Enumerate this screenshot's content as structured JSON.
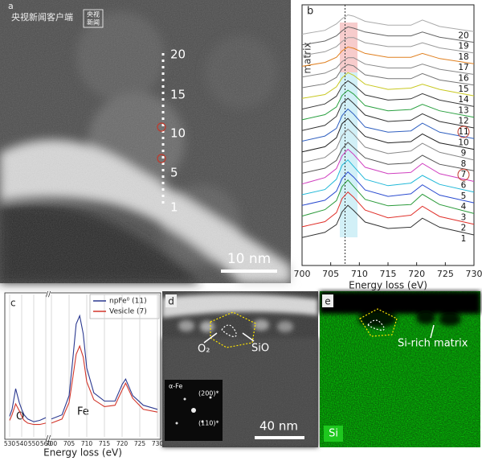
{
  "images": {
    "a": {
      "label": "a",
      "watermark": "央视新闻客户端",
      "logo": [
        "央视",
        "新闻"
      ],
      "marks": [
        "20",
        "15",
        "10",
        "5",
        "1"
      ],
      "scale_bar": "10 nm"
    },
    "d": {
      "label": "d",
      "o2": "O₂",
      "sio": "SiO",
      "inset_title": "α-Fe",
      "spots": [
        "(200)*",
        "(110)*"
      ],
      "scale_bar": "40 nm"
    },
    "e": {
      "label": "e",
      "annotation": "Si-rich matrix",
      "element": "Si"
    }
  },
  "chart_data": [
    {
      "type": "line",
      "panel": "b",
      "side_label": "matrix",
      "xlabel": "Energy loss (eV)",
      "x": [
        700,
        704,
        706,
        707,
        708,
        709,
        711,
        715,
        719,
        721,
        724,
        730
      ],
      "xlim": [
        700,
        730
      ],
      "xticks": [
        700,
        705,
        710,
        715,
        720,
        725,
        730
      ],
      "vline": 707.5,
      "series": [
        {
          "name": "1",
          "color": "#333333",
          "values": [
            0.3,
            0.7,
            1.3,
            2.3,
            2.8,
            2.4,
            1.5,
            1.0,
            1.1,
            1.8,
            1.1,
            0.5
          ]
        },
        {
          "name": "2",
          "color": "#e0302a",
          "values": [
            0.3,
            0.7,
            1.4,
            2.5,
            3.0,
            2.6,
            1.6,
            1.0,
            1.2,
            1.9,
            1.1,
            0.5
          ]
        },
        {
          "name": "3",
          "color": "#2a9a3a",
          "values": [
            0.3,
            0.8,
            1.5,
            2.6,
            3.1,
            2.6,
            1.6,
            1.1,
            1.2,
            2.0,
            1.2,
            0.5
          ]
        },
        {
          "name": "4",
          "color": "#2a4bd0",
          "values": [
            0.3,
            0.7,
            1.4,
            2.4,
            2.9,
            2.5,
            1.5,
            1.0,
            1.2,
            1.9,
            1.1,
            0.5
          ]
        },
        {
          "name": "5",
          "color": "#21b8d8",
          "values": [
            0.3,
            0.7,
            1.5,
            2.6,
            3.0,
            2.5,
            1.5,
            1.0,
            1.2,
            1.8,
            1.1,
            0.5
          ]
        },
        {
          "name": "6",
          "color": "#d040c0",
          "values": [
            0.3,
            0.8,
            1.5,
            2.5,
            3.0,
            2.6,
            1.6,
            1.1,
            1.2,
            1.9,
            1.1,
            0.5
          ]
        },
        {
          "name": "7",
          "color": "#555555",
          "circled": true,
          "values": [
            0.3,
            0.7,
            1.3,
            2.2,
            2.7,
            2.3,
            1.5,
            1.0,
            1.1,
            1.7,
            1.0,
            0.5
          ]
        },
        {
          "name": "8",
          "color": "#888888",
          "values": [
            0.3,
            0.7,
            1.4,
            2.4,
            2.9,
            2.5,
            1.5,
            1.0,
            1.2,
            1.8,
            1.1,
            0.5
          ]
        },
        {
          "name": "9",
          "color": "#222222",
          "values": [
            0.3,
            0.7,
            1.4,
            2.5,
            2.9,
            2.4,
            1.5,
            1.0,
            1.1,
            1.7,
            1.0,
            0.5
          ]
        },
        {
          "name": "10",
          "color": "#3060c0",
          "values": [
            0.3,
            0.7,
            1.3,
            2.3,
            2.8,
            2.4,
            1.4,
            1.0,
            1.1,
            1.7,
            1.0,
            0.5
          ]
        },
        {
          "name": "11",
          "color": "#333333",
          "circled": true,
          "values": [
            0.3,
            0.7,
            1.4,
            2.4,
            2.8,
            2.4,
            1.5,
            1.0,
            1.1,
            1.6,
            1.0,
            0.5
          ]
        },
        {
          "name": "12",
          "color": "#2aa040",
          "values": [
            0.3,
            0.7,
            1.3,
            2.2,
            2.6,
            2.3,
            1.4,
            1.0,
            1.1,
            1.5,
            1.0,
            0.5
          ]
        },
        {
          "name": "13",
          "color": "#3a3a3a",
          "values": [
            0.3,
            0.7,
            1.3,
            2.1,
            2.5,
            2.2,
            1.4,
            1.0,
            1.1,
            1.5,
            1.0,
            0.5
          ]
        },
        {
          "name": "14",
          "color": "#c8c820",
          "values": [
            0.3,
            0.6,
            1.2,
            1.9,
            2.3,
            2.1,
            1.4,
            1.0,
            1.1,
            1.4,
            1.0,
            0.5
          ]
        },
        {
          "name": "15",
          "color": "#777777",
          "values": [
            0.3,
            0.6,
            1.1,
            1.8,
            2.1,
            2.0,
            1.3,
            1.0,
            1.0,
            1.4,
            0.9,
            0.5
          ]
        },
        {
          "name": "16",
          "color": "#888888",
          "values": [
            0.3,
            0.6,
            1.0,
            1.5,
            1.8,
            1.8,
            1.3,
            1.0,
            1.0,
            1.3,
            0.9,
            0.5
          ]
        },
        {
          "name": "17",
          "color": "#e08020",
          "values": [
            0.3,
            0.6,
            1.0,
            1.5,
            1.8,
            1.7,
            1.3,
            1.0,
            1.0,
            1.3,
            0.9,
            0.5
          ]
        },
        {
          "name": "18",
          "color": "#999999",
          "values": [
            0.3,
            0.6,
            1.0,
            1.4,
            1.7,
            1.7,
            1.3,
            1.0,
            1.0,
            1.3,
            0.9,
            0.5
          ]
        },
        {
          "name": "19",
          "color": "#666666",
          "values": [
            0.3,
            0.6,
            1.0,
            1.4,
            1.7,
            1.6,
            1.3,
            1.0,
            1.0,
            1.3,
            0.9,
            0.5
          ]
        },
        {
          "name": "20",
          "color": "#aaaaaa",
          "values": [
            0.3,
            0.6,
            1.1,
            1.5,
            1.8,
            1.7,
            1.3,
            1.0,
            1.0,
            1.4,
            0.9,
            0.5
          ]
        }
      ]
    },
    {
      "type": "line",
      "panel": "c",
      "xlabel": "Energy loss (eV)",
      "break": "//",
      "annotations": [
        "O",
        "Fe"
      ],
      "x": [
        530,
        532,
        535,
        538,
        540,
        542,
        545,
        550,
        555,
        560,
        700,
        703,
        705,
        706,
        707,
        708,
        709,
        710,
        712,
        715,
        718,
        720,
        721,
        723,
        726,
        730
      ],
      "xlim": [
        [
          530,
          560
        ],
        [
          700,
          730
        ]
      ],
      "xticks": [
        530,
        540,
        550,
        560,
        700,
        705,
        710,
        715,
        720,
        725,
        730
      ],
      "ylim": [
        0,
        10
      ],
      "grid": true,
      "legend": "upper right",
      "series": [
        {
          "name": "npFe⁰ (11)",
          "color": "#2b3990",
          "values": [
            1.5,
            2.0,
            3.5,
            2.5,
            2.0,
            1.6,
            1.3,
            1.1,
            1.2,
            1.4,
            1.3,
            1.6,
            3.0,
            5.5,
            8.2,
            8.8,
            7.5,
            5.0,
            3.2,
            2.6,
            2.6,
            3.8,
            4.2,
            3.0,
            2.3,
            2.0
          ]
        },
        {
          "name": "Vesicle (7)",
          "color": "#d2362b",
          "values": [
            1.2,
            1.6,
            2.4,
            1.9,
            1.5,
            1.2,
            1.0,
            0.9,
            0.9,
            1.0,
            1.0,
            1.3,
            2.5,
            4.2,
            6.0,
            6.6,
            5.8,
            4.0,
            2.7,
            2.2,
            2.3,
            3.4,
            3.9,
            2.8,
            2.0,
            1.8
          ]
        }
      ]
    }
  ]
}
